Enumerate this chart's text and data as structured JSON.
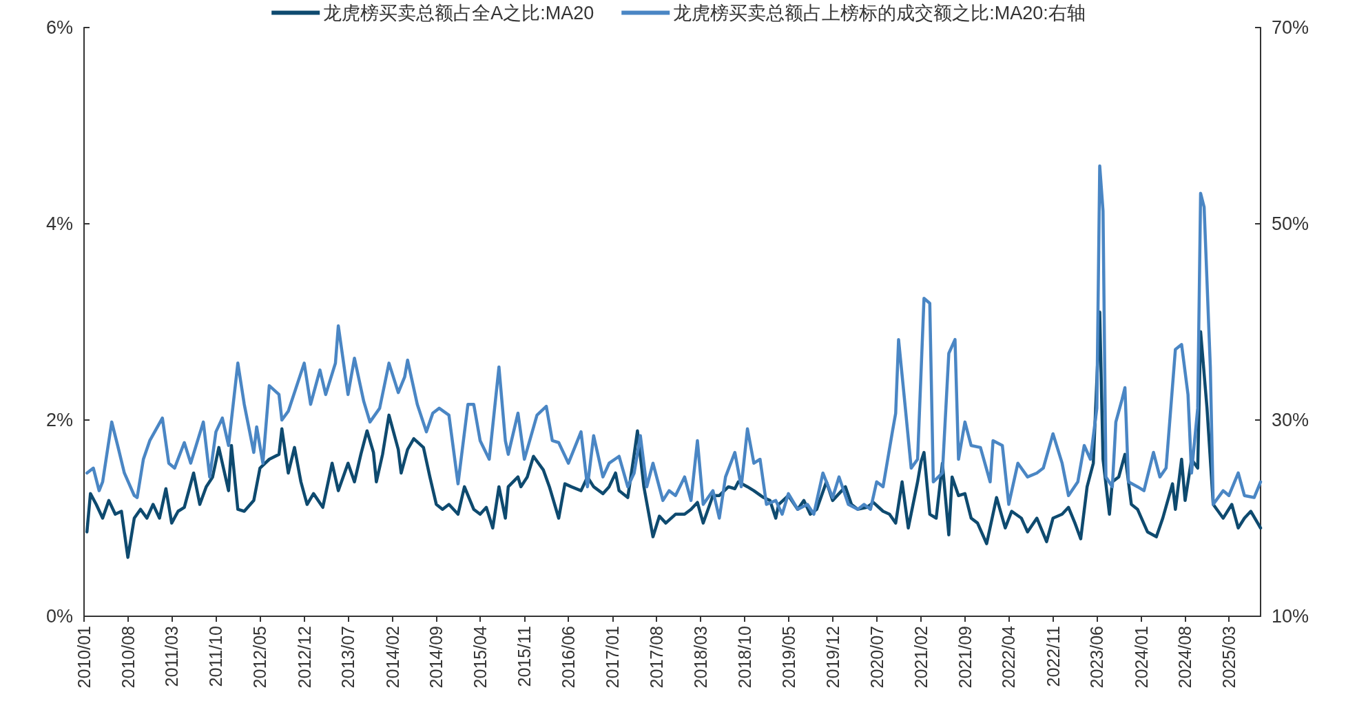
{
  "chart_data": {
    "type": "line",
    "legend": "top",
    "xlim": [
      "2010-01",
      "2025-08"
    ],
    "xticks": [
      {
        "value": "2010-01",
        "label": "2010/01"
      },
      {
        "value": "2010-08",
        "label": "2010/08"
      },
      {
        "value": "2011-03",
        "label": "2011/03"
      },
      {
        "value": "2011-10",
        "label": "2011/10"
      },
      {
        "value": "2012-05",
        "label": "2012/05"
      },
      {
        "value": "2012-12",
        "label": "2012/12"
      },
      {
        "value": "2013-07",
        "label": "2013/07"
      },
      {
        "value": "2014-02",
        "label": "2014/02"
      },
      {
        "value": "2014-09",
        "label": "2014/09"
      },
      {
        "value": "2015-04",
        "label": "2015/04"
      },
      {
        "value": "2015-11",
        "label": "2015/11"
      },
      {
        "value": "2016-06",
        "label": "2016/06"
      },
      {
        "value": "2017-01",
        "label": "2017/01"
      },
      {
        "value": "2017-08",
        "label": "2017/08"
      },
      {
        "value": "2018-03",
        "label": "2018/03"
      },
      {
        "value": "2018-10",
        "label": "2018/10"
      },
      {
        "value": "2019-05",
        "label": "2019/05"
      },
      {
        "value": "2019-12",
        "label": "2019/12"
      },
      {
        "value": "2020-07",
        "label": "2020/07"
      },
      {
        "value": "2021-02",
        "label": "2021/02"
      },
      {
        "value": "2021-09",
        "label": "2021/09"
      },
      {
        "value": "2022-04",
        "label": "2022/04"
      },
      {
        "value": "2022-11",
        "label": "2022/11"
      },
      {
        "value": "2023-06",
        "label": "2023/06"
      },
      {
        "value": "2024-01",
        "label": "2024/01"
      },
      {
        "value": "2024-08",
        "label": "2024/08"
      },
      {
        "value": "2025-03",
        "label": "2025/03"
      }
    ],
    "ylim": [
      0,
      6
    ],
    "yticks": [
      {
        "value": 0,
        "label": "0%"
      },
      {
        "value": 2,
        "label": "2%"
      },
      {
        "value": 4,
        "label": "4%"
      },
      {
        "value": 6,
        "label": "6%"
      }
    ],
    "y2lim": [
      10,
      70
    ],
    "y2ticks": [
      {
        "value": 10,
        "label": "10%"
      },
      {
        "value": 30,
        "label": "30%"
      },
      {
        "value": 50,
        "label": "50%"
      },
      {
        "value": 70,
        "label": "70%"
      }
    ],
    "series": [
      {
        "name": "龙虎榜买卖总额占全A之比:MA20",
        "color": "#0e4a6f",
        "x": [
          "2010-01-15",
          "2010-02-01",
          "2010-03-01",
          "2010-04-01",
          "2010-05-01",
          "2010-06-01",
          "2010-07-01",
          "2010-08-01",
          "2010-09-01",
          "2010-10-01",
          "2010-11-01",
          "2010-12-01",
          "2011-01-01",
          "2011-02-01",
          "2011-03-01",
          "2011-04-01",
          "2011-05-01",
          "2011-06-15",
          "2011-07-15",
          "2011-08-15",
          "2011-09-15",
          "2011-10-15",
          "2011-12-01",
          "2011-12-15",
          "2012-01-15",
          "2012-02-15",
          "2012-04-01",
          "2012-05-01",
          "2012-06-15",
          "2012-08-01",
          "2012-08-15",
          "2012-09-15",
          "2012-10-15",
          "2012-11-15",
          "2012-12-15",
          "2013-01-15",
          "2013-03-01",
          "2013-04-15",
          "2013-05-15",
          "2013-07-01",
          "2013-08-01",
          "2013-09-01",
          "2013-10-01",
          "2013-11-01",
          "2013-11-15",
          "2013-12-15",
          "2014-01-15",
          "2014-03-01",
          "2014-03-15",
          "2014-04-15",
          "2014-05-15",
          "2014-07-01",
          "2014-08-01",
          "2014-09-01",
          "2014-10-01",
          "2014-11-01",
          "2014-12-15",
          "2015-01-15",
          "2015-03-01",
          "2015-04-01",
          "2015-05-01",
          "2015-06-01",
          "2015-07-01",
          "2015-08-01",
          "2015-08-15",
          "2015-10-01",
          "2015-10-15",
          "2015-11-15",
          "2015-12-15",
          "2016-02-01",
          "2016-03-01",
          "2016-04-15",
          "2016-05-15",
          "2016-06-15",
          "2016-08-01",
          "2016-09-01",
          "2016-10-01",
          "2016-11-15",
          "2016-12-15",
          "2017-01-15",
          "2017-02-01",
          "2017-03-15",
          "2017-04-15",
          "2017-05-01",
          "2017-06-01",
          "2017-07-15",
          "2017-08-15",
          "2017-09-15",
          "2017-11-01",
          "2017-12-15",
          "2018-01-15",
          "2018-02-15",
          "2018-03-15",
          "2018-05-01",
          "2018-06-01",
          "2018-07-15",
          "2018-08-15",
          "2018-09-01",
          "2018-10-15",
          "2018-11-15",
          "2019-01-01",
          "2019-02-01",
          "2019-03-01",
          "2019-03-15",
          "2019-05-01",
          "2019-06-15",
          "2019-07-15",
          "2019-08-15",
          "2019-09-15",
          "2019-11-01",
          "2019-12-01",
          "2020-02-01",
          "2020-03-01",
          "2020-04-01",
          "2020-05-15",
          "2020-06-15",
          "2020-08-01",
          "2020-09-01",
          "2020-10-01",
          "2020-11-01",
          "2020-12-01",
          "2021-01-15",
          "2021-02-01",
          "2021-02-15",
          "2021-03-15",
          "2021-04-15",
          "2021-05-15",
          "2021-06-15",
          "2021-07-01",
          "2021-08-01",
          "2021-09-01",
          "2021-10-01",
          "2021-11-01",
          "2021-12-15",
          "2022-02-01",
          "2022-03-15",
          "2022-04-15",
          "2022-06-01",
          "2022-07-01",
          "2022-08-15",
          "2022-10-01",
          "2022-11-01",
          "2022-12-15",
          "2023-01-15",
          "2023-02-15",
          "2023-03-15",
          "2023-04-15",
          "2023-05-15",
          "2023-06-15",
          "2023-07-01",
          "2023-08-01",
          "2023-08-15",
          "2023-09-15",
          "2023-10-15",
          "2023-11-15",
          "2023-12-15",
          "2024-02-01",
          "2024-03-15",
          "2024-04-15",
          "2024-06-01",
          "2024-06-15",
          "2024-07-15",
          "2024-08-01",
          "2024-09-01",
          "2024-10-01",
          "2024-10-15",
          "2024-11-15",
          "2024-12-15",
          "2025-02-01",
          "2025-03-15",
          "2025-04-15",
          "2025-05-15",
          "2025-06-15",
          "2025-08-01"
        ],
        "values": [
          0.86,
          1.25,
          1.14,
          1.0,
          1.18,
          1.04,
          1.07,
          0.6,
          1.0,
          1.09,
          1.0,
          1.14,
          1.0,
          1.3,
          0.95,
          1.07,
          1.11,
          1.46,
          1.14,
          1.32,
          1.42,
          1.72,
          1.28,
          1.74,
          1.09,
          1.07,
          1.18,
          1.51,
          1.6,
          1.65,
          1.91,
          1.46,
          1.72,
          1.37,
          1.14,
          1.25,
          1.11,
          1.56,
          1.28,
          1.56,
          1.37,
          1.65,
          1.89,
          1.67,
          1.37,
          1.65,
          2.05,
          1.7,
          1.46,
          1.7,
          1.81,
          1.72,
          1.42,
          1.14,
          1.09,
          1.14,
          1.04,
          1.32,
          1.09,
          1.04,
          1.11,
          0.9,
          1.32,
          1.0,
          1.32,
          1.42,
          1.32,
          1.42,
          1.63,
          1.49,
          1.32,
          1.0,
          1.35,
          1.32,
          1.28,
          1.42,
          1.32,
          1.25,
          1.32,
          1.46,
          1.28,
          1.21,
          1.65,
          1.89,
          1.32,
          0.81,
          1.02,
          0.95,
          1.04,
          1.04,
          1.09,
          1.16,
          0.95,
          1.23,
          1.23,
          1.32,
          1.3,
          1.37,
          1.32,
          1.28,
          1.21,
          1.18,
          1.0,
          1.14,
          1.23,
          1.09,
          1.18,
          1.04,
          1.09,
          1.37,
          1.18,
          1.32,
          1.14,
          1.09,
          1.11,
          1.16,
          1.07,
          1.04,
          0.95,
          1.37,
          0.9,
          1.37,
          1.58,
          1.67,
          1.04,
          1.0,
          1.56,
          0.83,
          1.42,
          1.23,
          1.25,
          1.0,
          0.95,
          0.74,
          1.21,
          0.9,
          1.07,
          1.0,
          0.86,
          1.0,
          0.76,
          1.0,
          1.04,
          1.11,
          0.95,
          0.79,
          1.32,
          1.56,
          3.1,
          1.6,
          1.04,
          1.37,
          1.42,
          1.65,
          1.14,
          1.09,
          0.86,
          0.81,
          1.0,
          1.35,
          1.09,
          1.6,
          1.18,
          1.6,
          1.51,
          2.9,
          2.12,
          1.14,
          1.0,
          1.14,
          0.9,
          1.0,
          1.07,
          0.9
        ]
      },
      {
        "name": "龙虎榜买卖总额占上榜标的成交额之比:MA20:右轴",
        "color": "#4a86c4",
        "axis": "y2",
        "x": [
          "2010-01-15",
          "2010-02-15",
          "2010-03-15",
          "2010-04-01",
          "2010-05-15",
          "2010-06-15",
          "2010-07-15",
          "2010-09-01",
          "2010-09-15",
          "2010-10-15",
          "2010-11-15",
          "2011-01-15",
          "2011-02-15",
          "2011-03-15",
          "2011-05-01",
          "2011-06-01",
          "2011-08-01",
          "2011-09-01",
          "2011-10-01",
          "2011-11-01",
          "2011-12-01",
          "2012-01-15",
          "2012-02-15",
          "2012-04-01",
          "2012-04-15",
          "2012-05-15",
          "2012-06-15",
          "2012-08-01",
          "2012-08-15",
          "2012-09-15",
          "2012-12-01",
          "2013-01-01",
          "2013-02-15",
          "2013-03-15",
          "2013-05-01",
          "2013-05-15",
          "2013-07-01",
          "2013-08-01",
          "2013-09-15",
          "2013-10-15",
          "2013-12-01",
          "2014-01-15",
          "2014-03-01",
          "2014-04-01",
          "2014-04-15",
          "2014-06-01",
          "2014-07-15",
          "2014-08-15",
          "2014-09-15",
          "2014-11-01",
          "2014-12-15",
          "2015-02-01",
          "2015-03-01",
          "2015-04-01",
          "2015-05-15",
          "2015-07-01",
          "2015-08-01",
          "2015-08-15",
          "2015-10-01",
          "2015-11-01",
          "2016-01-01",
          "2016-02-15",
          "2016-03-15",
          "2016-04-15",
          "2016-06-01",
          "2016-08-01",
          "2016-09-01",
          "2016-10-01",
          "2016-11-15",
          "2016-12-15",
          "2017-02-01",
          "2017-03-15",
          "2017-04-15",
          "2017-05-15",
          "2017-06-15",
          "2017-07-15",
          "2017-09-01",
          "2017-10-01",
          "2017-11-01",
          "2017-12-15",
          "2018-01-15",
          "2018-02-15",
          "2018-03-15",
          "2018-05-01",
          "2018-06-01",
          "2018-07-01",
          "2018-08-15",
          "2018-09-15",
          "2018-10-15",
          "2018-11-15",
          "2018-12-15",
          "2019-01-15",
          "2019-03-01",
          "2019-04-01",
          "2019-05-01",
          "2019-06-15",
          "2019-08-01",
          "2019-09-01",
          "2019-10-15",
          "2019-12-01",
          "2020-01-01",
          "2020-02-15",
          "2020-04-01",
          "2020-05-01",
          "2020-06-01",
          "2020-07-01",
          "2020-08-01",
          "2020-09-15",
          "2020-10-01",
          "2020-10-15",
          "2020-11-15",
          "2020-12-15",
          "2021-01-15",
          "2021-02-15",
          "2021-03-15",
          "2021-04-01",
          "2021-05-15",
          "2021-06-15",
          "2021-07-15",
          "2021-08-01",
          "2021-09-01",
          "2021-10-01",
          "2021-11-15",
          "2022-01-01",
          "2022-01-15",
          "2022-03-01",
          "2022-04-01",
          "2022-05-15",
          "2022-07-01",
          "2022-08-15",
          "2022-09-15",
          "2022-11-01",
          "2022-12-15",
          "2023-01-15",
          "2023-03-01",
          "2023-04-01",
          "2023-05-01",
          "2023-06-01",
          "2023-06-15",
          "2023-07-01",
          "2023-07-15",
          "2023-08-15",
          "2023-09-01",
          "2023-10-01",
          "2023-10-15",
          "2023-11-01",
          "2023-12-15",
          "2024-01-15",
          "2024-03-01",
          "2024-04-01",
          "2024-05-01",
          "2024-06-15",
          "2024-07-15",
          "2024-08-15",
          "2024-09-01",
          "2024-10-01",
          "2024-10-15",
          "2024-11-01",
          "2024-12-01",
          "2024-12-15",
          "2025-02-01",
          "2025-03-01",
          "2025-04-15",
          "2025-05-15",
          "2025-07-01",
          "2025-08-01"
        ],
        "values": [
          24.6,
          25.1,
          22.8,
          23.7,
          29.8,
          27.2,
          24.6,
          22.3,
          22.1,
          26.0,
          27.9,
          30.2,
          25.6,
          25.1,
          27.7,
          25.6,
          29.8,
          24.2,
          28.8,
          30.2,
          27.4,
          35.8,
          31.6,
          26.7,
          29.3,
          25.6,
          33.5,
          32.6,
          30.0,
          30.9,
          35.8,
          31.6,
          35.1,
          32.6,
          35.8,
          39.6,
          32.6,
          36.3,
          31.9,
          29.8,
          31.2,
          35.8,
          32.8,
          34.4,
          36.1,
          31.6,
          28.8,
          30.7,
          31.2,
          30.5,
          23.5,
          31.6,
          31.6,
          27.9,
          26.0,
          35.4,
          27.9,
          26.5,
          30.7,
          26.0,
          30.5,
          31.4,
          27.9,
          27.7,
          25.6,
          28.8,
          23.2,
          28.4,
          24.2,
          25.6,
          26.3,
          23.2,
          24.6,
          28.4,
          23.2,
          25.6,
          21.8,
          22.8,
          22.3,
          24.2,
          21.8,
          27.9,
          21.4,
          22.8,
          20.0,
          24.2,
          26.7,
          23.2,
          29.1,
          25.6,
          26.0,
          21.4,
          21.8,
          20.4,
          22.5,
          20.9,
          21.4,
          20.4,
          24.6,
          22.1,
          24.2,
          21.4,
          20.9,
          21.4,
          20.9,
          23.7,
          23.2,
          28.8,
          30.7,
          38.2,
          31.6,
          25.1,
          26.0,
          42.4,
          41.9,
          23.7,
          24.6,
          36.8,
          38.2,
          26.0,
          29.8,
          27.4,
          27.2,
          23.7,
          27.9,
          27.4,
          21.4,
          25.6,
          24.2,
          24.6,
          25.1,
          28.6,
          25.6,
          22.3,
          23.7,
          27.4,
          26.0,
          31.2,
          55.9,
          51.3,
          24.2,
          23.2,
          29.8,
          32.1,
          33.3,
          23.7,
          23.2,
          22.8,
          26.7,
          24.2,
          25.1,
          37.2,
          37.7,
          32.6,
          24.6,
          31.2,
          53.1,
          51.7,
          35.4,
          21.4,
          22.8,
          22.3,
          24.6,
          22.3,
          22.1,
          23.7
        ]
      }
    ]
  }
}
